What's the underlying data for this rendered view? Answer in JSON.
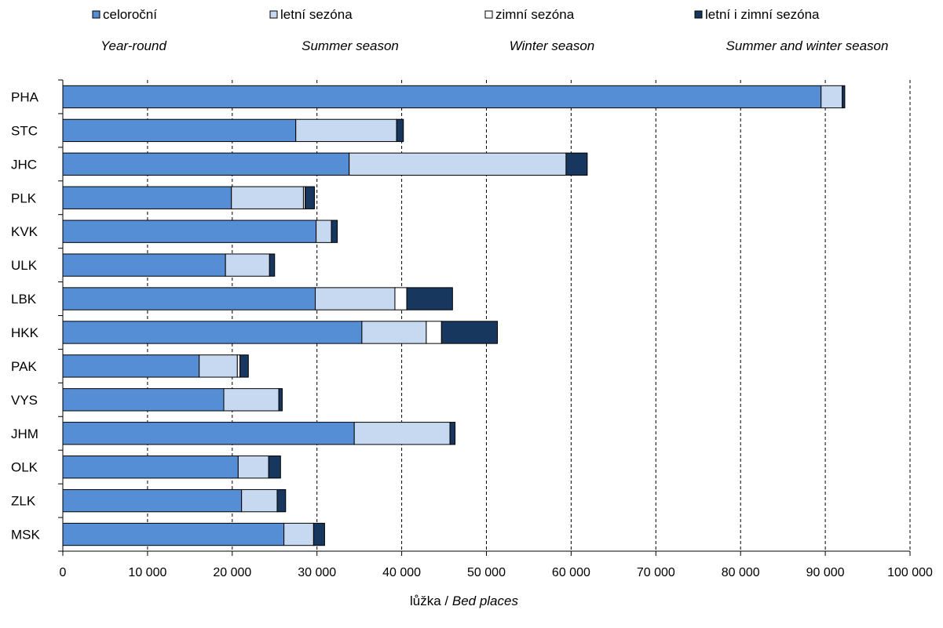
{
  "chart_data": {
    "type": "bar",
    "orientation": "horizontal",
    "stacked": true,
    "categories": [
      "PHA",
      "STC",
      "JHC",
      "PLK",
      "KVK",
      "ULK",
      "LBK",
      "HKK",
      "PAK",
      "VYS",
      "JHM",
      "OLK",
      "ZLK",
      "MSK"
    ],
    "series": [
      {
        "name": "celoroční",
        "name_en": "Year-round",
        "color": "#558ED5",
        "values": [
          89500,
          27500,
          33800,
          19900,
          29900,
          19200,
          29800,
          35300,
          16100,
          19000,
          34400,
          20700,
          21100,
          26100
        ]
      },
      {
        "name": "letní sezóna",
        "name_en": "Summer season",
        "color": "#C6D9F1",
        "values": [
          2500,
          11900,
          25600,
          8500,
          1800,
          5200,
          9400,
          7600,
          4500,
          6500,
          11300,
          3600,
          4200,
          3500
        ]
      },
      {
        "name": "zimní sezóna",
        "name_en": "Winter season",
        "color": "#FFFFFF",
        "values": [
          0,
          0,
          0,
          200,
          0,
          0,
          1400,
          1800,
          300,
          0,
          0,
          0,
          0,
          0
        ]
      },
      {
        "name": "letní i zimní sezóna",
        "name_en": "Summer and winter season",
        "color": "#17375E",
        "values": [
          300,
          800,
          2500,
          1100,
          700,
          600,
          5400,
          6600,
          1000,
          400,
          600,
          1400,
          1000,
          1300
        ]
      }
    ],
    "xlim": [
      0,
      100000
    ],
    "xticks": [
      0,
      10000,
      20000,
      30000,
      40000,
      50000,
      60000,
      70000,
      80000,
      90000,
      100000
    ],
    "xtick_labels": [
      "0",
      "10 000",
      "20 000",
      "30 000",
      "40 000",
      "50 000",
      "60 000",
      "70 000",
      "80 000",
      "90 000",
      "100 000"
    ],
    "xlabel": "lůžka",
    "xlabel_en": "Bed places",
    "grid": "vertical dashed",
    "legend": "top"
  }
}
